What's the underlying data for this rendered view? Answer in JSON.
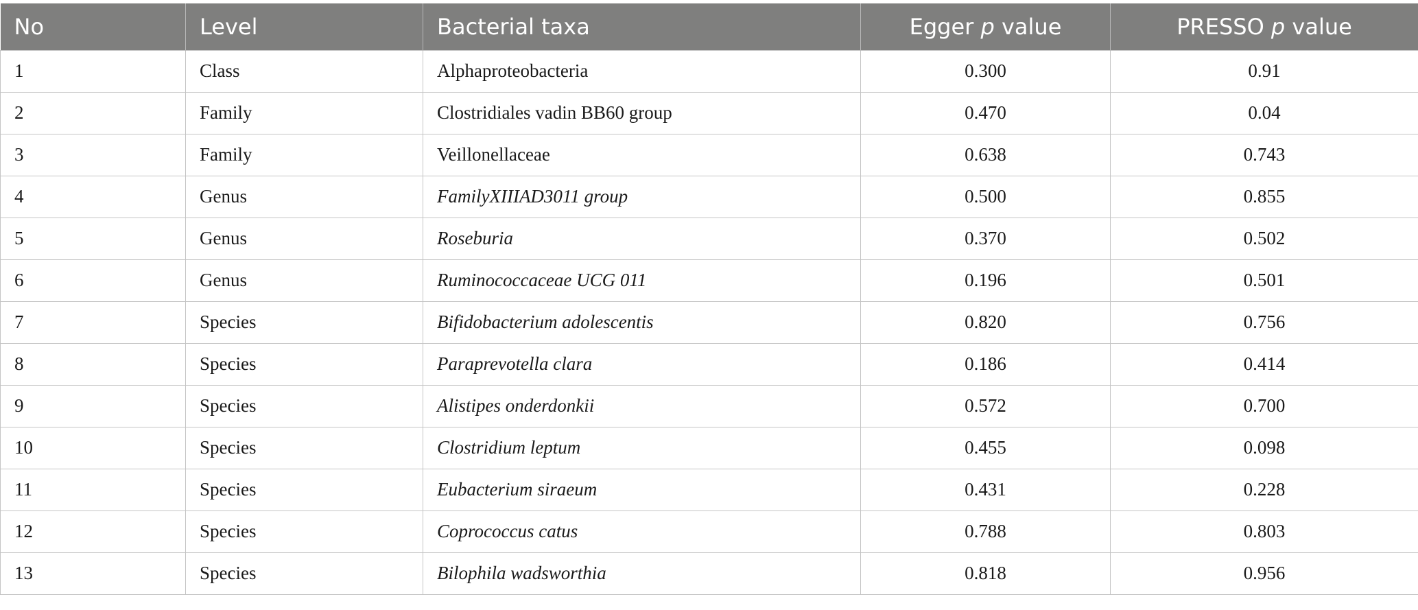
{
  "table": {
    "headers": {
      "no": "No",
      "level": "Level",
      "taxa": "Bacterial taxa",
      "egger_prefix": "Egger ",
      "egger_p": "p",
      "egger_suffix": " value",
      "presso_prefix": "PRESSO ",
      "presso_p": "p",
      "presso_suffix": " value"
    },
    "rows": [
      {
        "no": "1",
        "level": "Class",
        "taxa": "Alphaproteobacteria",
        "italic": false,
        "egger": "0.300",
        "presso": "0.91"
      },
      {
        "no": "2",
        "level": "Family",
        "taxa": "Clostridiales vadin BB60 group",
        "italic": false,
        "egger": "0.470",
        "presso": "0.04"
      },
      {
        "no": "3",
        "level": "Family",
        "taxa": "Veillonellaceae",
        "italic": false,
        "egger": "0.638",
        "presso": "0.743"
      },
      {
        "no": "4",
        "level": "Genus",
        "taxa": "FamilyXIIIAD3011 group",
        "italic": true,
        "egger": "0.500",
        "presso": "0.855"
      },
      {
        "no": "5",
        "level": "Genus",
        "taxa": "Roseburia",
        "italic": true,
        "egger": "0.370",
        "presso": "0.502"
      },
      {
        "no": "6",
        "level": "Genus",
        "taxa": "Ruminococcaceae UCG 011",
        "italic": true,
        "egger": "0.196",
        "presso": "0.501"
      },
      {
        "no": "7",
        "level": "Species",
        "taxa": "Bifidobacterium adolescentis",
        "italic": true,
        "egger": "0.820",
        "presso": "0.756"
      },
      {
        "no": "8",
        "level": "Species",
        "taxa": "Paraprevotella clara",
        "italic": true,
        "egger": "0.186",
        "presso": "0.414"
      },
      {
        "no": "9",
        "level": "Species",
        "taxa": "Alistipes onderdonkii",
        "italic": true,
        "egger": "0.572",
        "presso": "0.700"
      },
      {
        "no": "10",
        "level": "Species",
        "taxa": "Clostridium leptum",
        "italic": true,
        "egger": "0.455",
        "presso": "0.098"
      },
      {
        "no": "11",
        "level": "Species",
        "taxa": "Eubacterium siraeum",
        "italic": true,
        "egger": "0.431",
        "presso": "0.228"
      },
      {
        "no": "12",
        "level": "Species",
        "taxa": "Coprococcus catus",
        "italic": true,
        "egger": "0.788",
        "presso": "0.803"
      },
      {
        "no": "13",
        "level": "Species",
        "taxa": "Bilophila wadsworthia",
        "italic": true,
        "egger": "0.818",
        "presso": "0.956"
      }
    ]
  },
  "colors": {
    "header_bg": "#7f7f7e",
    "header_text": "#ffffff",
    "grid": "#c4c4c4"
  }
}
